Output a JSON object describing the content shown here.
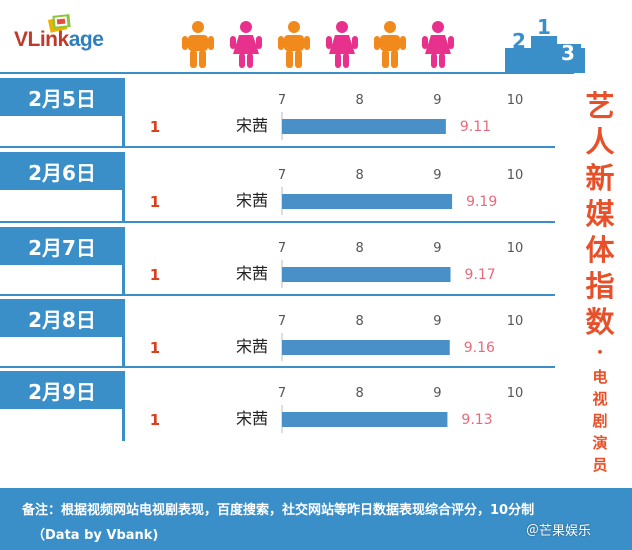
{
  "brand": {
    "logo_v": "V",
    "logo_link": "Link",
    "logo_age": "age"
  },
  "chart_data": [
    {
      "type": "bar",
      "date": "2月5日",
      "categories": [
        "宋茜"
      ],
      "ranks": [
        "1"
      ],
      "values": [
        9.11
      ],
      "value_labels": [
        "9.11"
      ],
      "xticks": [
        7,
        8,
        9,
        10
      ],
      "xlim": [
        7,
        10
      ]
    },
    {
      "type": "bar",
      "date": "2月6日",
      "categories": [
        "宋茜"
      ],
      "ranks": [
        "1"
      ],
      "values": [
        9.19
      ],
      "value_labels": [
        "9.19"
      ],
      "xticks": [
        7,
        8,
        9,
        10
      ],
      "xlim": [
        7,
        10
      ]
    },
    {
      "type": "bar",
      "date": "2月7日",
      "categories": [
        "宋茜"
      ],
      "ranks": [
        "1"
      ],
      "values": [
        9.17
      ],
      "value_labels": [
        "9.17"
      ],
      "xticks": [
        7,
        8,
        9,
        10
      ],
      "xlim": [
        7,
        10
      ]
    },
    {
      "type": "bar",
      "date": "2月8日",
      "categories": [
        "宋茜"
      ],
      "ranks": [
        "1"
      ],
      "values": [
        9.16
      ],
      "value_labels": [
        "9.16"
      ],
      "xticks": [
        7,
        8,
        9,
        10
      ],
      "xlim": [
        7,
        10
      ]
    },
    {
      "type": "bar",
      "date": "2月9日",
      "categories": [
        "宋茜"
      ],
      "ranks": [
        "1"
      ],
      "values": [
        9.13
      ],
      "value_labels": [
        "9.13"
      ],
      "xticks": [
        7,
        8,
        9,
        10
      ],
      "xlim": [
        7,
        10
      ]
    }
  ],
  "title_chars": [
    "艺",
    "人",
    "新",
    "媒",
    "体",
    "指",
    "数"
  ],
  "subtitle_dot": "•",
  "subtitle_chars": [
    "电",
    "视",
    "剧",
    "演",
    "员"
  ],
  "footer": {
    "note": "备注：根据视频网站电视剧表现，百度搜索，社交网站等昨日数据表现综合评分，10分制",
    "credit": "（Data by Vbank)"
  },
  "watermark": "＠芒果娱乐",
  "colors": {
    "accent_blue": "#3b8fc8",
    "bar_blue": "#4a90c8",
    "title_orange": "#e8502a",
    "rank_red": "#d9411e",
    "value_pink": "#e86a7a",
    "tick_gray": "#555555",
    "person_orange": "#f08a1c",
    "person_pink": "#e8318c"
  },
  "icons": [
    "logo-mark-icon",
    "person-male-icon",
    "person-female-icon",
    "podium-icon"
  ],
  "podium_labels": [
    "2",
    "1",
    "3"
  ]
}
